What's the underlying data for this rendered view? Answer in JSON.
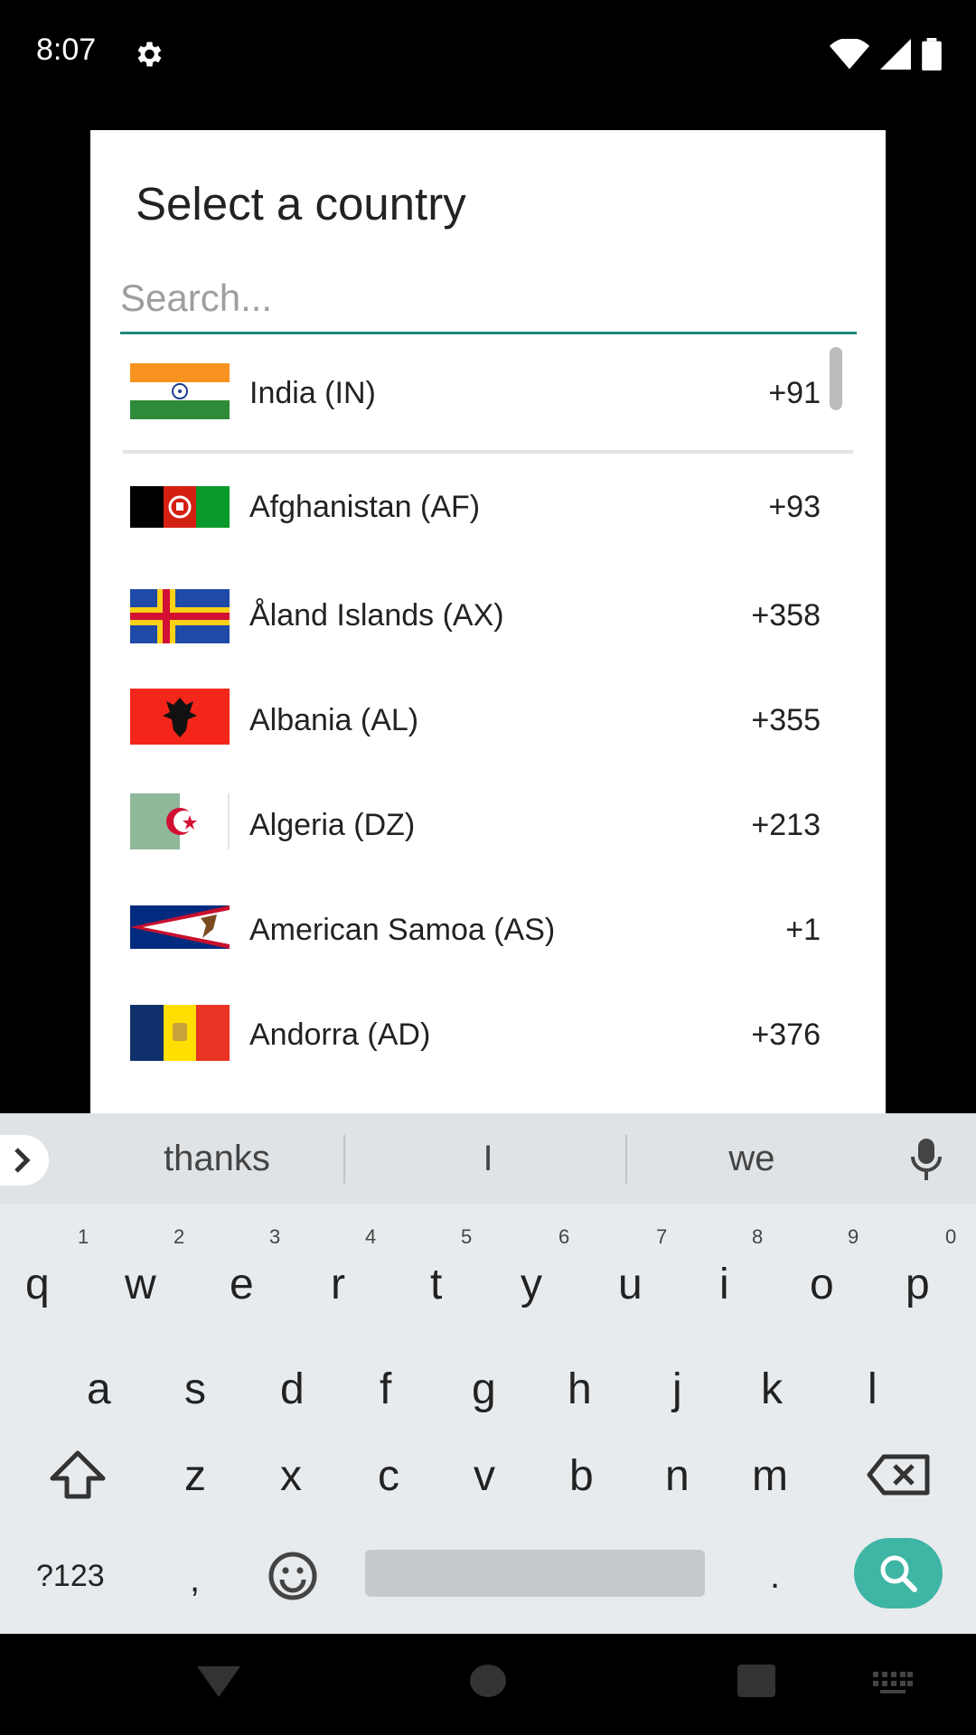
{
  "status_bar": {
    "time": "8:07",
    "icons": [
      "gear-icon",
      "wifi-icon",
      "signal-icon",
      "battery-icon"
    ]
  },
  "dialog": {
    "title": "Select a country",
    "search_placeholder": "Search...",
    "countries": [
      {
        "name": "India (IN)",
        "code": "+91"
      },
      {
        "name": "Afghanistan (AF)",
        "code": "+93"
      },
      {
        "name": "Åland Islands (AX)",
        "code": "+358"
      },
      {
        "name": "Albania (AL)",
        "code": "+355"
      },
      {
        "name": "Algeria (DZ)",
        "code": "+213"
      },
      {
        "name": "American Samoa (AS)",
        "code": "+1"
      },
      {
        "name": "Andorra (AD)",
        "code": "+376"
      }
    ]
  },
  "keyboard": {
    "suggestions": [
      "thanks",
      "I",
      "we"
    ],
    "row1": [
      "q",
      "w",
      "e",
      "r",
      "t",
      "y",
      "u",
      "i",
      "o",
      "p"
    ],
    "row1_hints": [
      "1",
      "2",
      "3",
      "4",
      "5",
      "6",
      "7",
      "8",
      "9",
      "0"
    ],
    "row2": [
      "a",
      "s",
      "d",
      "f",
      "g",
      "h",
      "j",
      "k",
      "l"
    ],
    "row3": [
      "z",
      "x",
      "c",
      "v",
      "b",
      "n",
      "m"
    ],
    "symbols_key": "?123",
    "comma_key": ",",
    "period_key": ".",
    "accent_color": "#3fb5a5"
  },
  "colors": {
    "search_underline": "#1e8a7c"
  }
}
